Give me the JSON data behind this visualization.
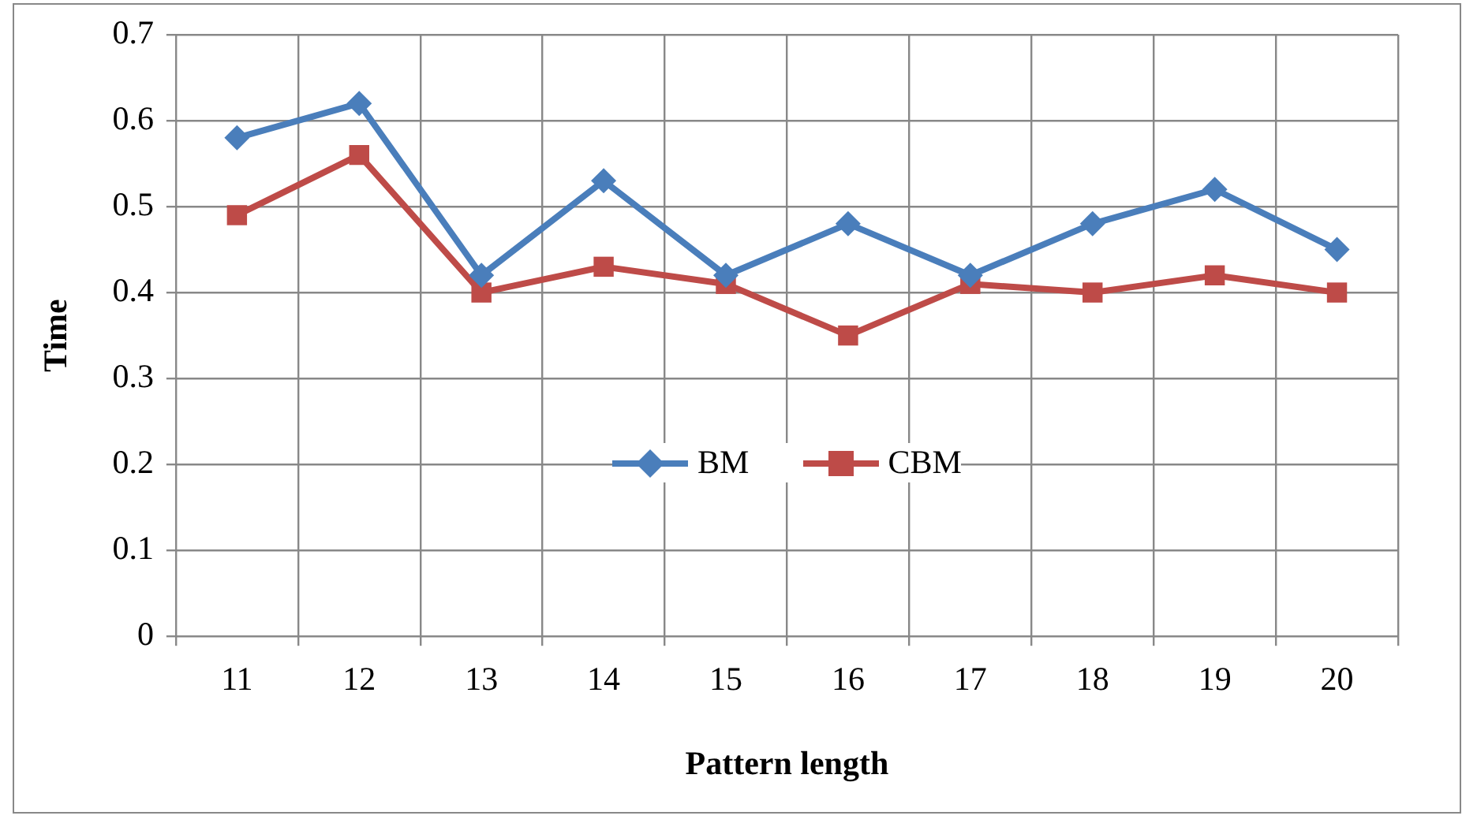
{
  "chart_data": {
    "type": "line",
    "xlabel": "Pattern length",
    "ylabel": "Time",
    "categories": [
      "11",
      "12",
      "13",
      "14",
      "15",
      "16",
      "17",
      "18",
      "19",
      "20"
    ],
    "series": [
      {
        "name": "BM",
        "color": "#4a7ebb",
        "marker": "diamond",
        "values": [
          0.58,
          0.62,
          0.42,
          0.53,
          0.42,
          0.48,
          0.42,
          0.48,
          0.52,
          0.45
        ]
      },
      {
        "name": "CBM",
        "color": "#be4b48",
        "marker": "square",
        "values": [
          0.49,
          0.56,
          0.4,
          0.43,
          0.41,
          0.35,
          0.41,
          0.4,
          0.42,
          0.4
        ]
      }
    ],
    "ylim": [
      0,
      0.7
    ],
    "yticks": [
      0,
      0.1,
      0.2,
      0.3,
      0.4,
      0.5,
      0.6,
      0.7
    ],
    "grid": true,
    "legend": "bottom"
  }
}
